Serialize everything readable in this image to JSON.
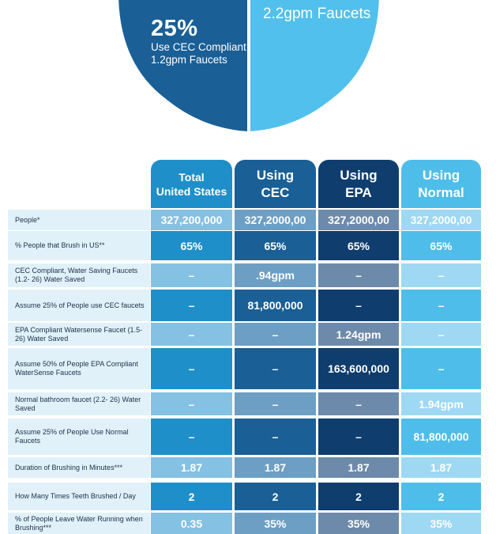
{
  "pie": {
    "left_pct": "25%",
    "left_label": "Use CEC Compliant 1.2gpm Faucets",
    "right_label": "2.2gpm Faucets",
    "colors": {
      "left": "#1a5f96",
      "right": "#52c0ec"
    }
  },
  "chart_data": {
    "type": "table",
    "columns": [
      "Total United States",
      "Using CEC",
      "Using EPA",
      "Using Normal"
    ],
    "rows": [
      {
        "label": "People*",
        "values": [
          "327,200,000",
          "327,2000,00",
          "327,2000,00",
          "327,2000,00"
        ]
      },
      {
        "label": "% People that Brush in US**",
        "values": [
          "65%",
          "65%",
          "65%",
          "65%"
        ]
      },
      {
        "label": "CEC Compliant, Water Saving Faucets (1.2- 26) Water Saved",
        "values": [
          "–",
          ".94gpm",
          "–",
          "–"
        ]
      },
      {
        "label": "Assume 25% of People use CEC faucets",
        "values": [
          "–",
          "81,800,000",
          "–",
          "–"
        ]
      },
      {
        "label": "EPA Compliant Watersense Faucet (1.5- 26) Water Saved",
        "values": [
          "–",
          "–",
          "1.24gpm",
          "–"
        ]
      },
      {
        "label": "Assume 50% of People EPA Compliant WaterSense Faucets",
        "values": [
          "–",
          "–",
          "163,600,000",
          "–"
        ]
      },
      {
        "label": "Normal bathroom faucet (2.2- 26) Water Saved",
        "values": [
          "–",
          "–",
          "–",
          "1.94gpm"
        ]
      },
      {
        "label": "Assume 25% of People Use Normal Faucets",
        "values": [
          "–",
          "–",
          "–",
          "81,800,000"
        ]
      },
      {
        "label": "Duration of Brushing in Minutes***",
        "values": [
          "1.87",
          "1.87",
          "1.87",
          "1.87"
        ]
      },
      {
        "label": "How Many Times Teeth Brushed / Day",
        "values": [
          "2",
          "2",
          "2",
          "2"
        ]
      },
      {
        "label": "% of People Leave Water Running when Brushing***",
        "values": [
          "0.35",
          "35%",
          "35%",
          "35%"
        ]
      }
    ],
    "colors": {
      "total": {
        "head": "#1e8fc9",
        "light": "#85c1e3",
        "dark": "#1f8fca"
      },
      "cec": {
        "head": "#1a5f96",
        "light": "#6d9fc4",
        "dark": "#1a5f96"
      },
      "epa": {
        "head": "#0f3d6e",
        "light": "#6d8aaa",
        "dark": "#0f3d6e"
      },
      "normal": {
        "head": "#4fbde9",
        "light": "#9ed8f3",
        "dark": "#4fbde9"
      }
    }
  }
}
